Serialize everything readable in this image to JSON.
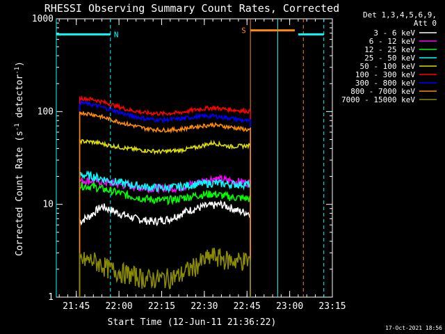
{
  "chart_data": {
    "type": "line",
    "title": "RHESSI Observing Summary Count Rates, Corrected",
    "xlabel": "Start Time (12-Jun-11 21:36:22)",
    "ylabel_main": "Corrected Count Rate (s",
    "ylabel_sup1": "-1",
    "ylabel_mid": " detector",
    "ylabel_sup2": "-1",
    "ylabel_end": ")",
    "y_scale": "log",
    "ylim": [
      1,
      1000
    ],
    "xlim_minutes": [
      21.633,
      23.25
    ],
    "x_tick_labels": [
      "21:45",
      "22:00",
      "22:15",
      "22:30",
      "22:45",
      "23:00",
      "23:15"
    ],
    "x_tick_minutes": [
      21.75,
      22.0,
      22.25,
      22.5,
      22.75,
      23.0,
      23.25
    ],
    "y_tick_labels": [
      "1",
      "10",
      "100",
      "1000"
    ],
    "y_tick_values": [
      1,
      10,
      100,
      1000
    ],
    "legend": {
      "header1": "Det 1,3,4,5,6,9,",
      "header2": "Att 0",
      "position": "top-right outside"
    },
    "data_window_hours": [
      21.77,
      22.77
    ],
    "series": [
      {
        "name": "3 - 6 keV",
        "color": "#ffffff",
        "x": [
          21.77,
          21.83,
          21.9,
          22.0,
          22.1,
          22.2,
          22.3,
          22.4,
          22.5,
          22.6,
          22.7,
          22.77
        ],
        "values": [
          6.5,
          7.5,
          9.5,
          8.0,
          7.0,
          6.5,
          7.0,
          8.5,
          9.5,
          10.0,
          8.5,
          8.0
        ]
      },
      {
        "name": "6 - 12 keV",
        "color": "#ff00ff",
        "x": [
          21.77,
          21.85,
          21.95,
          22.05,
          22.15,
          22.25,
          22.35,
          22.45,
          22.55,
          22.65,
          22.77
        ],
        "values": [
          18,
          18,
          17,
          16,
          15,
          15,
          15,
          17,
          19,
          18,
          17
        ]
      },
      {
        "name": "12 - 25 keV",
        "color": "#00ff00",
        "x": [
          21.77,
          21.85,
          21.95,
          22.05,
          22.15,
          22.25,
          22.35,
          22.45,
          22.55,
          22.65,
          22.77
        ],
        "values": [
          16,
          15.5,
          14,
          12.5,
          11.5,
          11.0,
          11.5,
          12.5,
          13.0,
          12.0,
          11.5
        ]
      },
      {
        "name": "25 - 50 keV",
        "color": "#00ffff",
        "x": [
          21.77,
          21.85,
          21.95,
          22.05,
          22.15,
          22.25,
          22.35,
          22.45,
          22.55,
          22.65,
          22.77
        ],
        "values": [
          21,
          20,
          18,
          16.5,
          15.5,
          15.0,
          15.5,
          16.5,
          17.0,
          16.5,
          16.5
        ]
      },
      {
        "name": "50 - 100 keV",
        "color": "#e0e000",
        "x": [
          21.77,
          21.85,
          21.95,
          22.05,
          22.15,
          22.25,
          22.35,
          22.45,
          22.55,
          22.65,
          22.77
        ],
        "values": [
          48,
          47,
          43,
          40,
          38,
          37,
          38,
          41,
          46,
          42,
          43
        ]
      },
      {
        "name": "100 - 300 keV",
        "color": "#ff0000",
        "x": [
          21.77,
          21.85,
          21.95,
          22.05,
          22.15,
          22.25,
          22.35,
          22.45,
          22.55,
          22.65,
          22.77
        ],
        "values": [
          140,
          135,
          120,
          105,
          97,
          95,
          97,
          105,
          110,
          105,
          100
        ]
      },
      {
        "name": "300 - 800 keV",
        "color": "#0000ff",
        "x": [
          21.77,
          21.85,
          21.95,
          22.05,
          22.15,
          22.25,
          22.35,
          22.45,
          22.55,
          22.65,
          22.77
        ],
        "values": [
          125,
          118,
          105,
          92,
          84,
          81,
          83,
          88,
          90,
          85,
          78
        ]
      },
      {
        "name": "800 - 7000 keV",
        "color": "#ff8c00",
        "x": [
          21.77,
          21.85,
          21.95,
          22.05,
          22.15,
          22.25,
          22.35,
          22.45,
          22.55,
          22.65,
          22.77
        ],
        "values": [
          98,
          93,
          82,
          73,
          66,
          63,
          64,
          69,
          72,
          68,
          63
        ]
      },
      {
        "name": "7000 - 15000 keV",
        "color": "#8b8b00",
        "x": [
          21.77,
          21.85,
          21.95,
          22.05,
          22.15,
          22.25,
          22.35,
          22.45,
          22.55,
          22.65,
          22.77
        ],
        "values": [
          2.5,
          2.5,
          2.0,
          1.8,
          1.6,
          1.6,
          1.7,
          2.2,
          2.8,
          2.5,
          2.5
        ]
      }
    ],
    "annotations": [
      {
        "label": "N",
        "color": "#00ffff",
        "x_start": 21.633,
        "x_end": 21.95,
        "value": 680
      },
      {
        "label": "S",
        "color": "#ff8c00",
        "x_start": 22.77,
        "x_end": 23.03,
        "value": 750
      },
      {
        "label": "",
        "color": "#00ffff",
        "x_start": 23.05,
        "x_end": 23.2,
        "value": 680
      }
    ],
    "vertical_markers": [
      {
        "x": 21.633,
        "color": "#00ffff",
        "style": "solid"
      },
      {
        "x": 21.95,
        "color": "#00ffff",
        "style": "dashed"
      },
      {
        "x": 22.77,
        "color": "#ff8c00",
        "style": "solid"
      },
      {
        "x": 22.93,
        "color": "#00ffff",
        "style": "solid"
      },
      {
        "x": 23.08,
        "color": "#ff8c00",
        "style": "dashed"
      },
      {
        "x": 23.2,
        "color": "#00ffff",
        "style": "dashed"
      }
    ],
    "footer_date": "17-Oct-2021 18:56"
  }
}
